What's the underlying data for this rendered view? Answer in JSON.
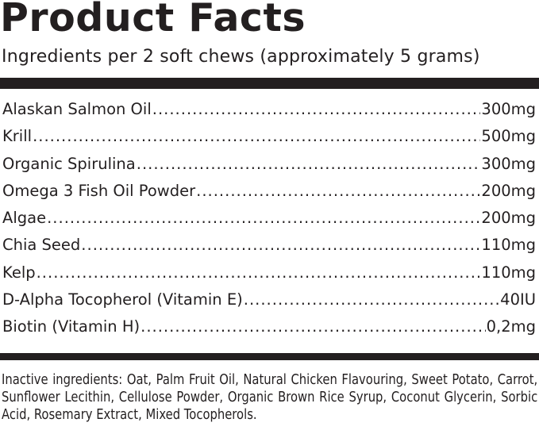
{
  "title": "Product Facts",
  "subtitle": "Ingredients per 2 soft chews (approximately 5 grams)",
  "ingredients": [
    {
      "name": "Alaskan Salmon Oil",
      "amount": "300mg"
    },
    {
      "name": "Krill",
      "amount": "500mg"
    },
    {
      "name": "Organic Spirulina",
      "amount": "300mg"
    },
    {
      "name": "Omega 3 Fish Oil Powder",
      "amount": "200mg"
    },
    {
      "name": "Algae",
      "amount": "200mg"
    },
    {
      "name": "Chia Seed",
      "amount": "110mg"
    },
    {
      "name": "Kelp",
      "amount": "110mg"
    },
    {
      "name": "D-Alpha Tocopherol (Vitamin E)",
      "amount": "40IU"
    },
    {
      "name": "Biotin (Vitamin H)",
      "amount": "0,2mg"
    }
  ],
  "inactive": "Inactive ingredients: Oat, Palm Fruit Oil, Natural Chicken Flavouring, Sweet Potato, Carrot, Sunflower Lecithin, Cellulose Powder, Organic Brown Rice Syrup, Coconut Glycerin, Sorbic Acid, Rosemary Extract, Mixed Tocopherols."
}
